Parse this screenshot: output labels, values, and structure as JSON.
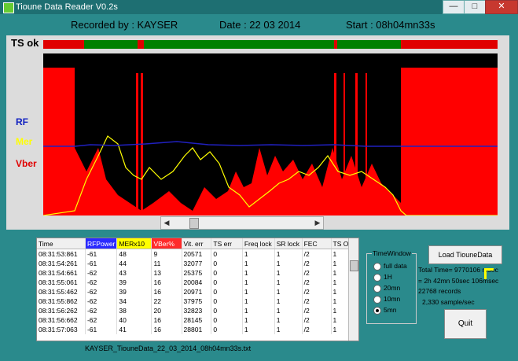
{
  "window": {
    "title": "Tioune Data Reader V0.2s",
    "btn_min": "—",
    "btn_max": "□",
    "btn_close": "✕"
  },
  "header": {
    "recorded_by": "Recorded by : KAYSER",
    "date": "Date : 22 03 2014",
    "start": "Start : 08h04mn33s"
  },
  "graph": {
    "ts_label": "TS ok",
    "rf_label": "RF",
    "mer_label": "Mer",
    "vber_label": "Vber",
    "colors": {
      "rf": "#2020c0",
      "mer": "#ffff00",
      "vber": "#ff0000",
      "ts_ok": "#008000",
      "ts_bad": "#e00000",
      "bg": "#000000"
    }
  },
  "scrollbar": {
    "left": "◀",
    "right": "▶",
    "position": 0.2
  },
  "table": {
    "headers": [
      "Time",
      "RFPower",
      "MERx10",
      "VBer%",
      "Vit. err",
      "TS err",
      "Freq lock",
      "SR lock",
      "FEC",
      "TS OK"
    ],
    "header_colors": [
      "",
      "#2a2aff",
      "#ffff00",
      "#ff2a2a",
      "",
      "",
      "",
      "",
      "",
      ""
    ],
    "rows": [
      [
        "08:31:53:861",
        "-61",
        "48",
        "9",
        "20571",
        "0",
        "1",
        "1",
        "/2",
        "1"
      ],
      [
        "08:31:54:261",
        "-61",
        "44",
        "11",
        "32077",
        "0",
        "1",
        "1",
        "/2",
        "1"
      ],
      [
        "08:31:54:661",
        "-62",
        "43",
        "13",
        "25375",
        "0",
        "1",
        "1",
        "/2",
        "1"
      ],
      [
        "08:31:55:061",
        "-62",
        "39",
        "16",
        "20084",
        "0",
        "1",
        "1",
        "/2",
        "1"
      ],
      [
        "08:31:55:462",
        "-62",
        "39",
        "16",
        "20971",
        "0",
        "1",
        "1",
        "/2",
        "1"
      ],
      [
        "08:31:55:862",
        "-62",
        "34",
        "22",
        "37975",
        "0",
        "1",
        "1",
        "/2",
        "1"
      ],
      [
        "08:31:56:262",
        "-62",
        "38",
        "20",
        "32823",
        "0",
        "1",
        "1",
        "/2",
        "1"
      ],
      [
        "08:31:56:662",
        "-62",
        "40",
        "16",
        "28145",
        "0",
        "1",
        "1",
        "/2",
        "1"
      ],
      [
        "08:31:57:063",
        "-61",
        "41",
        "16",
        "28801",
        "0",
        "1",
        "1",
        "/2",
        "1"
      ]
    ]
  },
  "filename": "KAYSER_TiouneData_22_03_2014_08h04mn33s.txt",
  "timewindow": {
    "legend": "TimeWindow",
    "options": [
      "full data",
      "1H",
      "20mn",
      "10mn",
      "5mn"
    ],
    "selected": 4
  },
  "buttons": {
    "load": "Load TiouneData",
    "quit": "Quit"
  },
  "info": {
    "total_time": "Total Time= 9770106 msec",
    "duration": "= 2h 42mn 50sec 106msec",
    "records": "22768 records",
    "rate": "2,330 sample/sec"
  }
}
